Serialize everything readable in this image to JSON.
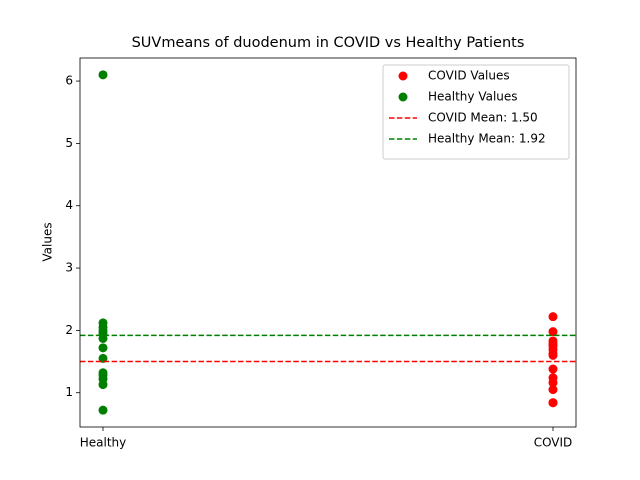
{
  "chart_data": {
    "type": "scatter",
    "title": "SUVmeans of duodenum in COVID vs Healthy Patients",
    "y_label": "Values",
    "categories": [
      "Healthy",
      "COVID"
    ],
    "series": [
      {
        "name": "COVID Values",
        "color": "#ff0000",
        "x": "COVID",
        "values": [
          2.22,
          1.98,
          1.83,
          1.78,
          1.75,
          1.69,
          1.63,
          1.6,
          1.38,
          1.24,
          1.16,
          1.05,
          0.84,
          0.84
        ]
      },
      {
        "name": "Healthy Values",
        "color": "#008000",
        "x": "Healthy",
        "values": [
          6.1,
          2.12,
          2.05,
          2.0,
          1.95,
          1.87,
          1.72,
          1.55,
          1.32,
          1.28,
          1.22,
          1.13,
          0.72
        ]
      }
    ],
    "lines": [
      {
        "name": "COVID Mean: 1.50",
        "value": 1.5,
        "color": "#ff0000",
        "dash": true
      },
      {
        "name": "Healthy Mean: 1.92",
        "value": 1.92,
        "color": "#008000",
        "dash": true
      }
    ],
    "ylim": [
      0.45,
      6.37
    ],
    "yticks": [
      1,
      2,
      3,
      4,
      5,
      6
    ],
    "legend": "upper right",
    "grid": false
  }
}
